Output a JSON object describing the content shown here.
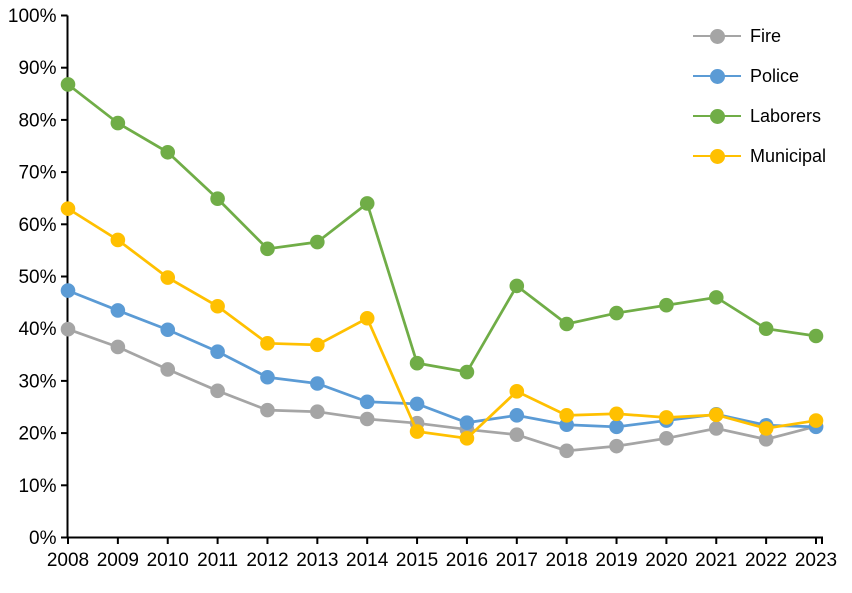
{
  "chart_data": {
    "type": "line",
    "title": "",
    "xlabel": "",
    "ylabel": "",
    "grid": false,
    "legend_position": "top-right",
    "background_color": "#FFFFFF",
    "axis_color": "#000000",
    "categories": [
      "2008",
      "2009",
      "2010",
      "2011",
      "2012",
      "2013",
      "2014",
      "2015",
      "2016",
      "2017",
      "2018",
      "2019",
      "2020",
      "2021",
      "2022",
      "2023"
    ],
    "series": [
      {
        "name": "Fire",
        "color": "#A5A5A5",
        "values": [
          39.9,
          36.5,
          32.2,
          28.1,
          24.4,
          24.1,
          22.7,
          21.9,
          20.7,
          19.7,
          16.6,
          17.5,
          19.0,
          20.9,
          18.8,
          21.3
        ]
      },
      {
        "name": "Police",
        "color": "#5B9BD5",
        "values": [
          47.3,
          43.5,
          39.8,
          35.6,
          30.7,
          29.5,
          26.0,
          25.6,
          22.0,
          23.4,
          21.6,
          21.2,
          22.4,
          23.6,
          21.5,
          21.2
        ]
      },
      {
        "name": "Laborers",
        "color": "#70AD47",
        "values": [
          86.8,
          79.4,
          73.8,
          64.9,
          55.3,
          56.6,
          64.0,
          33.4,
          31.7,
          48.2,
          40.9,
          43.0,
          44.5,
          46.0,
          40.0,
          38.6
        ]
      },
      {
        "name": "Municipal",
        "color": "#FFC000",
        "values": [
          63.0,
          57.0,
          49.8,
          44.3,
          37.2,
          36.9,
          42.0,
          20.3,
          19.0,
          28.0,
          23.4,
          23.7,
          23.0,
          23.5,
          20.9,
          22.4
        ]
      }
    ],
    "y_axis": {
      "min": 0,
      "max": 100,
      "step": 10,
      "tick_labels": [
        "0%",
        "10%",
        "20%",
        "30%",
        "40%",
        "50%",
        "60%",
        "70%",
        "80%",
        "90%",
        "100%"
      ]
    }
  }
}
